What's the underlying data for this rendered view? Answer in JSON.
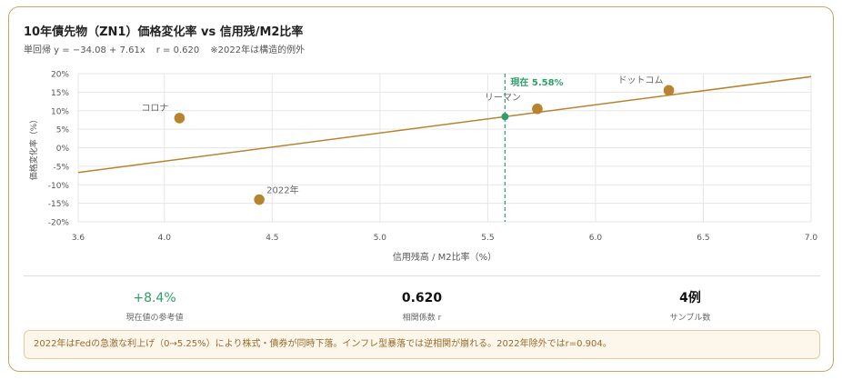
{
  "header": {
    "title": "10年債先物（ZN1）価格変化率 vs 信用残/M2比率",
    "regression": "単回帰 y = −34.08 + 7.61x",
    "r_text": "r = 0.620",
    "note": "※2022年は構造的例外"
  },
  "chart_data": {
    "type": "scatter",
    "xlabel": "信用残高 / M2比率（%）",
    "ylabel": "価格変化率（%）",
    "xlim": [
      3.6,
      7.0
    ],
    "ylim": [
      -20,
      20
    ],
    "xticks": [
      3.6,
      4.0,
      4.5,
      5.0,
      5.5,
      6.0,
      6.5,
      7.0
    ],
    "yticks": [
      20,
      15,
      10,
      5,
      0,
      -5,
      -10,
      -15,
      -20
    ],
    "points": [
      {
        "label": "コロナ",
        "x": 4.07,
        "y": 8.0
      },
      {
        "label": "2022年",
        "x": 4.44,
        "y": -14.0
      },
      {
        "label": "リーマン",
        "x": 5.73,
        "y": 10.5
      },
      {
        "label": "ドットコム",
        "x": 6.34,
        "y": 15.5
      }
    ],
    "regression": {
      "intercept": -34.08,
      "slope": 7.61
    },
    "current": {
      "x": 5.58,
      "y": 8.4,
      "label": "現在 5.58%"
    },
    "grid": true,
    "colors": {
      "points": "#b8832f",
      "line": "#b8832f",
      "current": "#2e9e6a",
      "grid": "#e6e6e6"
    }
  },
  "stats": [
    {
      "value": "+8.4%",
      "label": "現在値の参考値"
    },
    {
      "value": "0.620",
      "label": "相関係数 r"
    },
    {
      "value": "4例",
      "label": "サンプル数"
    }
  ],
  "footnote": "2022年はFedの急激な利上げ（0→5.25%）により株式・債券が同時下落。インフレ型暴落では逆相関が崩れる。2022年除外ではr=0.904。"
}
